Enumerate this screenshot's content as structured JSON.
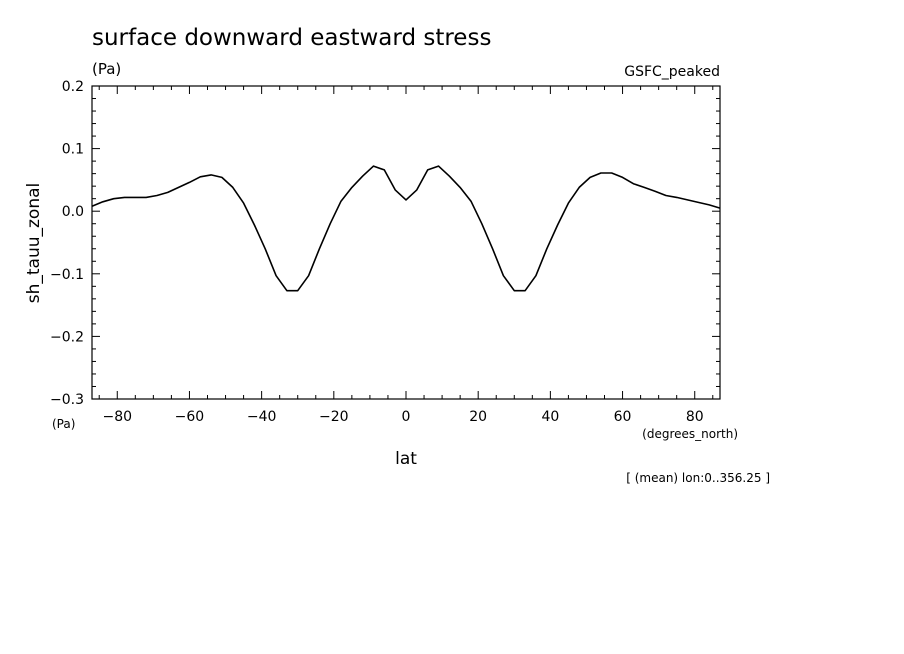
{
  "chart_data": {
    "type": "line",
    "title": "surface downward eastward stress",
    "units": "(Pa)",
    "dataset_label": "GSFC_peaked",
    "ylabel": "sh_tauu_zonal",
    "ylabel_units": "(Pa)",
    "xlabel": "lat",
    "xlabel_units": "(degrees_north)",
    "footnote": "[ (mean) lon:0..356.25 ]",
    "xlim": [
      -87,
      87
    ],
    "ylim": [
      -0.3,
      0.2
    ],
    "x_ticks": [
      -80,
      -60,
      -40,
      -20,
      0,
      20,
      40,
      60,
      80
    ],
    "y_ticks": [
      0.2,
      0.1,
      0.0,
      -0.1,
      -0.2,
      -0.3
    ],
    "y_tick_labels": [
      "0.2",
      "0.1",
      "0.0",
      "−0.1",
      "−0.2",
      "−0.3"
    ],
    "x_tick_labels": [
      "−80",
      "−60",
      "−40",
      "−20",
      "0",
      "20",
      "40",
      "60",
      "80"
    ],
    "grid": false,
    "series": [
      {
        "x": [
          -87,
          -84,
          -81,
          -78,
          -75,
          -72,
          -69,
          -66,
          -63,
          -60,
          -57,
          -54,
          -51,
          -48,
          -45,
          -42,
          -39,
          -36,
          -33,
          -30,
          -27,
          -24,
          -21,
          -18,
          -15,
          -12,
          -9,
          -6,
          -3,
          0,
          3,
          6,
          9,
          12,
          15,
          18,
          21,
          24,
          27,
          30,
          33,
          36,
          39,
          42,
          45,
          48,
          51,
          54,
          57,
          60,
          63,
          66,
          69,
          72,
          75,
          78,
          81,
          84,
          87
        ],
        "y": [
          0.008,
          0.015,
          0.02,
          0.022,
          0.022,
          0.022,
          0.025,
          0.03,
          0.038,
          0.046,
          0.055,
          0.058,
          0.054,
          0.038,
          0.013,
          -0.022,
          -0.06,
          -0.103,
          -0.127,
          -0.127,
          -0.103,
          -0.06,
          -0.02,
          0.016,
          0.038,
          0.056,
          0.072,
          0.066,
          0.034,
          0.018,
          0.034,
          0.066,
          0.072,
          0.056,
          0.038,
          0.016,
          -0.02,
          -0.06,
          -0.103,
          -0.127,
          -0.127,
          -0.103,
          -0.06,
          -0.022,
          0.013,
          0.038,
          0.054,
          0.061,
          0.061,
          0.054,
          0.044,
          0.038,
          0.032,
          0.025,
          0.022,
          0.018,
          0.014,
          0.01,
          0.005
        ]
      }
    ]
  }
}
